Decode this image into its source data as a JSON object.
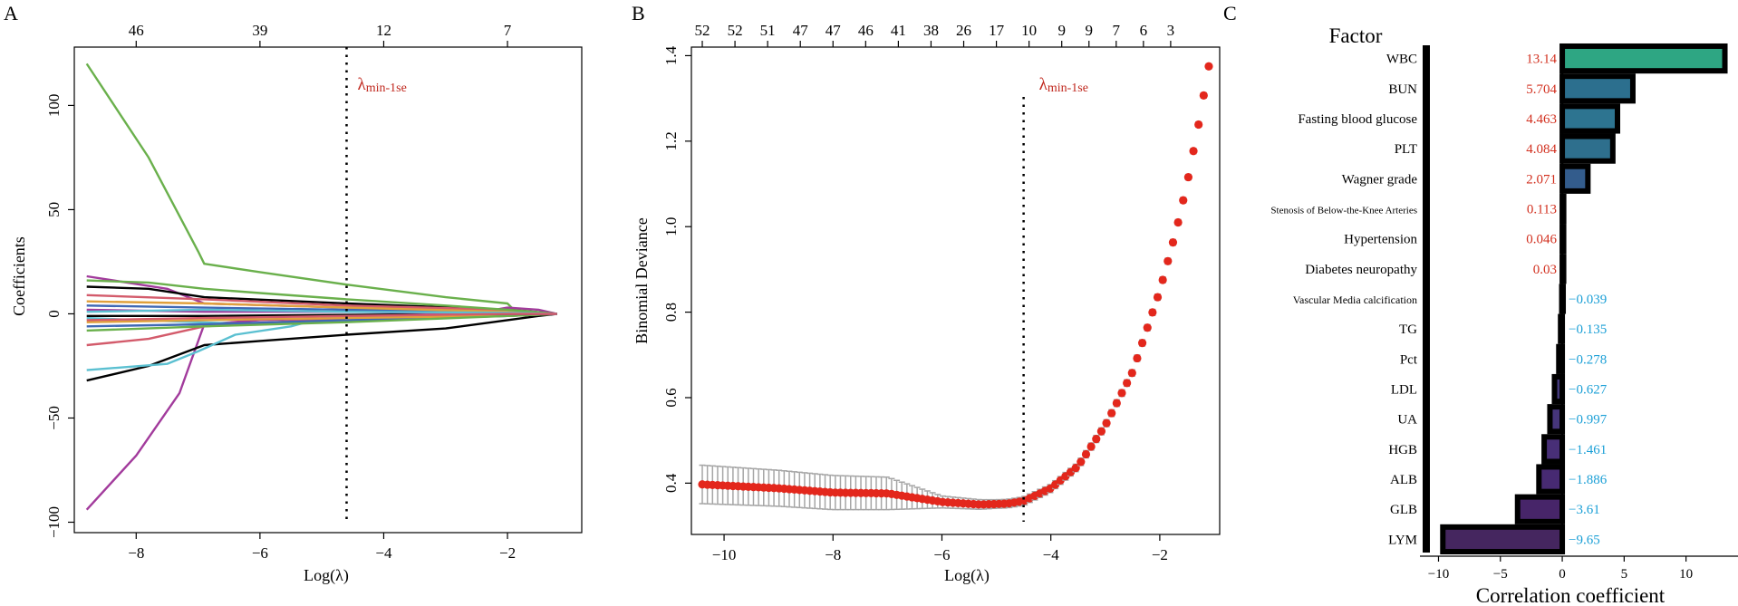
{
  "chart_data": [
    {
      "panel": "A",
      "type": "line",
      "xlabel": "Log(λ)",
      "ylabel": "Coefficients",
      "xlim": [
        -9.0,
        -0.8
      ],
      "ylim": [
        -105,
        128
      ],
      "x_ticks": [
        -8,
        -6,
        -4,
        -2
      ],
      "y_ticks": [
        -100,
        -50,
        0,
        50,
        100
      ],
      "top_ticks": [
        {
          "x": -8.0,
          "label": "46"
        },
        {
          "x": -6.0,
          "label": "39"
        },
        {
          "x": -4.0,
          "label": "12"
        },
        {
          "x": -2.0,
          "label": "7"
        }
      ],
      "vline": {
        "x": -4.6,
        "label_main": "λ",
        "label_sub": "min-1se"
      },
      "series": [
        {
          "color": "#6ab04c",
          "points": [
            [
              -8.8,
              120
            ],
            [
              -7.8,
              75
            ],
            [
              -7.0,
              30
            ],
            [
              -6.9,
              24
            ],
            [
              -6.0,
              20
            ],
            [
              -4.6,
              14
            ],
            [
              -3.0,
              8
            ],
            [
              -2.0,
              5
            ],
            [
              -1.9,
              2
            ],
            [
              -1.2,
              0
            ]
          ]
        },
        {
          "color": "#a23b9c",
          "points": [
            [
              -8.8,
              -94
            ],
            [
              -8.0,
              -68
            ],
            [
              -7.3,
              -38
            ],
            [
              -6.9,
              -5
            ],
            [
              -6.0,
              -3
            ],
            [
              -4.6,
              -2
            ],
            [
              -2.0,
              -1
            ],
            [
              -1.2,
              0
            ]
          ]
        },
        {
          "color": "#a23b9c",
          "points": [
            [
              -8.8,
              18
            ],
            [
              -7.5,
              12
            ],
            [
              -6.9,
              5
            ],
            [
              -4.6,
              3
            ],
            [
              -2.2,
              2
            ],
            [
              -2.0,
              3
            ],
            [
              -1.5,
              2
            ],
            [
              -1.2,
              0
            ]
          ]
        },
        {
          "color": "#000000",
          "points": [
            [
              -8.8,
              -32
            ],
            [
              -7.8,
              -25
            ],
            [
              -6.9,
              -15
            ],
            [
              -6.0,
              -13
            ],
            [
              -4.6,
              -10
            ],
            [
              -3.0,
              -7
            ],
            [
              -2.0,
              -3
            ],
            [
              -1.5,
              -1
            ],
            [
              -1.2,
              0
            ]
          ]
        },
        {
          "color": "#000000",
          "points": [
            [
              -8.8,
              13
            ],
            [
              -7.8,
              12
            ],
            [
              -6.9,
              8
            ],
            [
              -4.6,
              5
            ],
            [
              -2.0,
              2
            ],
            [
              -1.2,
              0
            ]
          ]
        },
        {
          "color": "#5bc0d1",
          "points": [
            [
              -8.8,
              -27
            ],
            [
              -7.5,
              -24
            ],
            [
              -7.0,
              -18
            ],
            [
              -6.4,
              -10
            ],
            [
              -5.5,
              -6
            ],
            [
              -5.0,
              -2
            ],
            [
              -4.6,
              -1
            ],
            [
              -2.0,
              0
            ],
            [
              -1.2,
              0
            ]
          ]
        },
        {
          "color": "#5bc0d1",
          "points": [
            [
              -8.8,
              -2
            ],
            [
              -7.0,
              -4
            ],
            [
              -6.0,
              -5
            ],
            [
              -4.6,
              -3
            ],
            [
              -2.0,
              -1
            ],
            [
              -1.2,
              0
            ]
          ]
        },
        {
          "color": "#d35b6b",
          "points": [
            [
              -8.8,
              -15
            ],
            [
              -7.8,
              -12
            ],
            [
              -6.9,
              -6
            ],
            [
              -4.6,
              -2
            ],
            [
              -2.0,
              0
            ],
            [
              -1.2,
              0
            ]
          ]
        },
        {
          "color": "#d35b6b",
          "points": [
            [
              -8.8,
              9
            ],
            [
              -6.9,
              7
            ],
            [
              -4.6,
              4
            ],
            [
              -2.0,
              2
            ],
            [
              -1.2,
              0
            ]
          ]
        },
        {
          "color": "#3f68b5",
          "points": [
            [
              -8.8,
              4
            ],
            [
              -6.9,
              3
            ],
            [
              -4.6,
              2
            ],
            [
              -2.0,
              1
            ],
            [
              -1.2,
              0
            ]
          ]
        },
        {
          "color": "#3f68b5",
          "points": [
            [
              -8.8,
              -6
            ],
            [
              -6.9,
              -5
            ],
            [
              -4.6,
              -3
            ],
            [
              -2.0,
              -1
            ],
            [
              -1.2,
              0
            ]
          ]
        },
        {
          "color": "#e0a03c",
          "points": [
            [
              -8.8,
              6
            ],
            [
              -6.9,
              5
            ],
            [
              -4.6,
              3
            ],
            [
              -2.0,
              1
            ],
            [
              -1.2,
              0
            ]
          ]
        },
        {
          "color": "#e0a03c",
          "points": [
            [
              -8.8,
              -4
            ],
            [
              -6.9,
              -3
            ],
            [
              -4.6,
              -2
            ],
            [
              -2.0,
              -1
            ],
            [
              -1.2,
              0
            ]
          ]
        },
        {
          "color": "#6ab04c",
          "points": [
            [
              -8.8,
              16
            ],
            [
              -7.8,
              15
            ],
            [
              -6.9,
              12
            ],
            [
              -6.0,
              10
            ],
            [
              -4.6,
              7
            ],
            [
              -3.0,
              4
            ],
            [
              -2.0,
              2
            ],
            [
              -1.2,
              0
            ]
          ]
        },
        {
          "color": "#6ab04c",
          "points": [
            [
              -8.8,
              -8
            ],
            [
              -6.9,
              -6
            ],
            [
              -4.6,
              -4
            ],
            [
              -2.0,
              -1
            ],
            [
              -1.2,
              0
            ]
          ]
        },
        {
          "color": "#000000",
          "points": [
            [
              -8.8,
              -1
            ],
            [
              -6.9,
              -1
            ],
            [
              -4.6,
              -0.5
            ],
            [
              -2.0,
              0
            ],
            [
              -1.2,
              0
            ]
          ]
        },
        {
          "color": "#a23b9c",
          "points": [
            [
              -8.8,
              2
            ],
            [
              -6.9,
              1
            ],
            [
              -4.6,
              1
            ],
            [
              -2.0,
              0
            ],
            [
              -1.2,
              0
            ]
          ]
        },
        {
          "color": "#5bc0d1",
          "points": [
            [
              -8.8,
              1
            ],
            [
              -6.9,
              2
            ],
            [
              -4.6,
              1
            ],
            [
              -2.0,
              0.5
            ],
            [
              -1.2,
              0
            ]
          ]
        },
        {
          "color": "#d35b6b",
          "points": [
            [
              -8.8,
              -3
            ],
            [
              -6.9,
              -2
            ],
            [
              -4.6,
              -1
            ],
            [
              -2.0,
              0
            ],
            [
              -1.2,
              0
            ]
          ]
        }
      ]
    },
    {
      "panel": "B",
      "type": "scatter",
      "xlabel": "Log(λ)",
      "ylabel": "Binomial Deviance",
      "xlim": [
        -10.6,
        -0.9
      ],
      "ylim": [
        0.28,
        1.42
      ],
      "x_ticks": [
        -10,
        -8,
        -6,
        -4,
        -2
      ],
      "y_ticks": [
        0.4,
        0.6,
        0.8,
        1.0,
        1.2,
        1.4
      ],
      "top_ticks": [
        {
          "x": -10.4,
          "label": "52"
        },
        {
          "x": -9.8,
          "label": "52"
        },
        {
          "x": -9.2,
          "label": "51"
        },
        {
          "x": -8.6,
          "label": "47"
        },
        {
          "x": -8.0,
          "label": "47"
        },
        {
          "x": -7.4,
          "label": "46"
        },
        {
          "x": -6.8,
          "label": "41"
        },
        {
          "x": -6.2,
          "label": "38"
        },
        {
          "x": -5.6,
          "label": "26"
        },
        {
          "x": -5.0,
          "label": "17"
        },
        {
          "x": -4.4,
          "label": "10"
        },
        {
          "x": -3.8,
          "label": "9"
        },
        {
          "x": -3.3,
          "label": "9"
        },
        {
          "x": -2.8,
          "label": "7"
        },
        {
          "x": -2.3,
          "label": "6"
        },
        {
          "x": -1.8,
          "label": "3"
        }
      ],
      "vline": {
        "x": -4.5,
        "label_main": "λ",
        "label_sub": "min-1se"
      },
      "curve_knots": [
        [
          -10.4,
          0.397
        ],
        [
          -9.0,
          0.388
        ],
        [
          -8.0,
          0.378
        ],
        [
          -7.0,
          0.376
        ],
        [
          -6.8,
          0.372
        ],
        [
          -6.0,
          0.356
        ],
        [
          -5.3,
          0.35
        ],
        [
          -4.8,
          0.352
        ],
        [
          -4.5,
          0.358
        ],
        [
          -4.0,
          0.388
        ],
        [
          -3.5,
          0.44
        ],
        [
          -3.0,
          0.535
        ],
        [
          -2.5,
          0.66
        ],
        [
          -2.0,
          0.85
        ],
        [
          -1.7,
          0.99
        ],
        [
          -1.5,
          1.1
        ],
        [
          -1.3,
          1.23
        ],
        [
          -1.1,
          1.375
        ]
      ],
      "error_knots": [
        [
          -10.4,
          0.045
        ],
        [
          -8.0,
          0.04
        ],
        [
          -7.0,
          0.038
        ],
        [
          -6.0,
          0.014
        ],
        [
          -5.0,
          0.01
        ],
        [
          -4.5,
          0.01
        ],
        [
          -3.0,
          0.008
        ],
        [
          -1.1,
          0.006
        ]
      ]
    },
    {
      "panel": "C",
      "type": "bar",
      "orientation": "horizontal",
      "column_header": "Factor",
      "xlabel": "Correlation coefficient",
      "xlim": [
        -11.5,
        14.2
      ],
      "x_ticks": [
        -10,
        -5,
        0,
        5,
        10
      ],
      "categories": [
        "WBC",
        "BUN",
        "Fasting blood glucose",
        "PLT",
        "Wagner grade",
        "Stenosis of Below-the-Knee Arteries",
        "Hypertension",
        "Diabetes neuropathy",
        "Vascular Media calcification",
        "TG",
        "Pct",
        "LDL",
        "UA",
        "HGB",
        "ALB",
        "GLB",
        "LYM"
      ],
      "values": [
        13.14,
        5.704,
        4.463,
        4.084,
        2.071,
        0.113,
        0.046,
        0.03,
        -0.039,
        -0.135,
        -0.278,
        -0.627,
        -0.997,
        -1.461,
        -1.886,
        -3.61,
        -9.65
      ],
      "value_labels": [
        "13.14",
        "5.704",
        "4.463",
        "4.084",
        "2.071",
        "0.113",
        "0.046",
        "0.03",
        "−0.039",
        "−0.135",
        "−0.278",
        "−0.627",
        "−0.997",
        "−1.461",
        "−1.886",
        "−3.61",
        "−9.65"
      ],
      "positive_label_color": "#d2301f",
      "negative_label_color": "#1a9fd6",
      "bar_colors": [
        "#2ea683",
        "#2c6f8e",
        "#2d7490",
        "#2e6f8d",
        "#335c8c",
        "#355889",
        "#3a5088",
        "#3c4c86",
        "#404785",
        "#414585",
        "#444081",
        "#453a7e",
        "#46357b",
        "#482f77",
        "#472a72",
        "#472569",
        "#45265f"
      ]
    }
  ],
  "panels": {
    "a": {
      "letter": "A"
    },
    "b": {
      "letter": "B"
    },
    "c": {
      "letter": "C"
    }
  }
}
